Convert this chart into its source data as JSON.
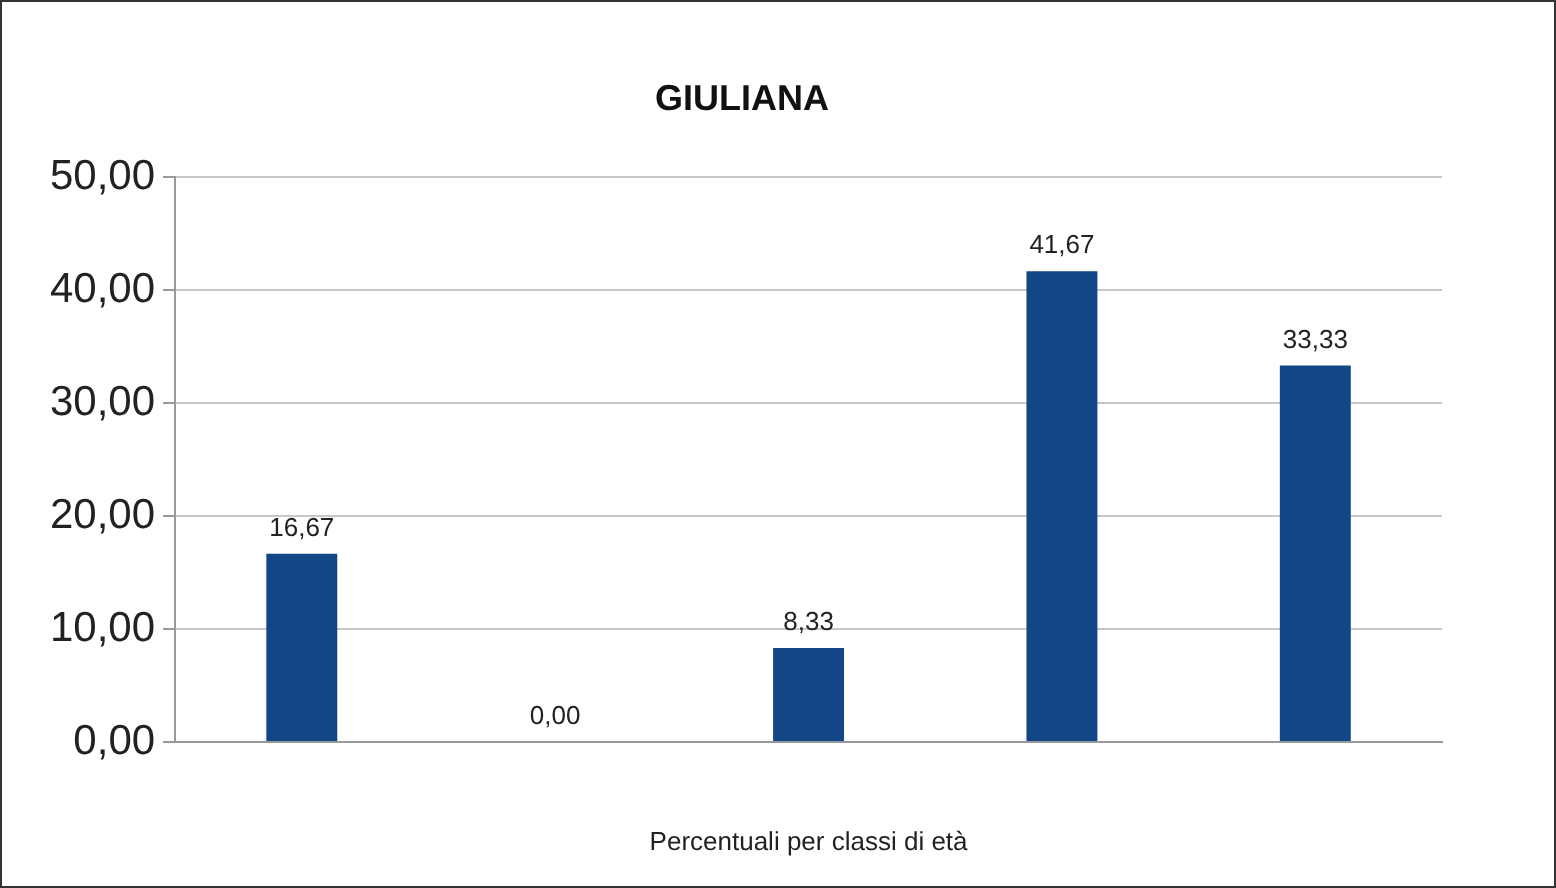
{
  "chart_data": {
    "type": "bar",
    "title": "GIULIANA",
    "xlabel": "Percentuali per classi di età",
    "categories": [
      null,
      null,
      null,
      null,
      null
    ],
    "values": [
      16.67,
      0,
      8.33,
      41.67,
      33.33
    ],
    "value_labels": [
      "16,67",
      "0,00",
      "8,33",
      "41,67",
      "33,33"
    ],
    "color": "#134686",
    "ylim": [
      0,
      50
    ],
    "yticks": [
      {
        "value": 0,
        "label": "0,00"
      },
      {
        "value": 10,
        "label": "10,00"
      },
      {
        "value": 20,
        "label": "20,00"
      },
      {
        "value": 30,
        "label": "30,00"
      },
      {
        "value": 40,
        "label": "40,00"
      },
      {
        "value": 50,
        "label": "50,00"
      }
    ],
    "grid": "y"
  }
}
